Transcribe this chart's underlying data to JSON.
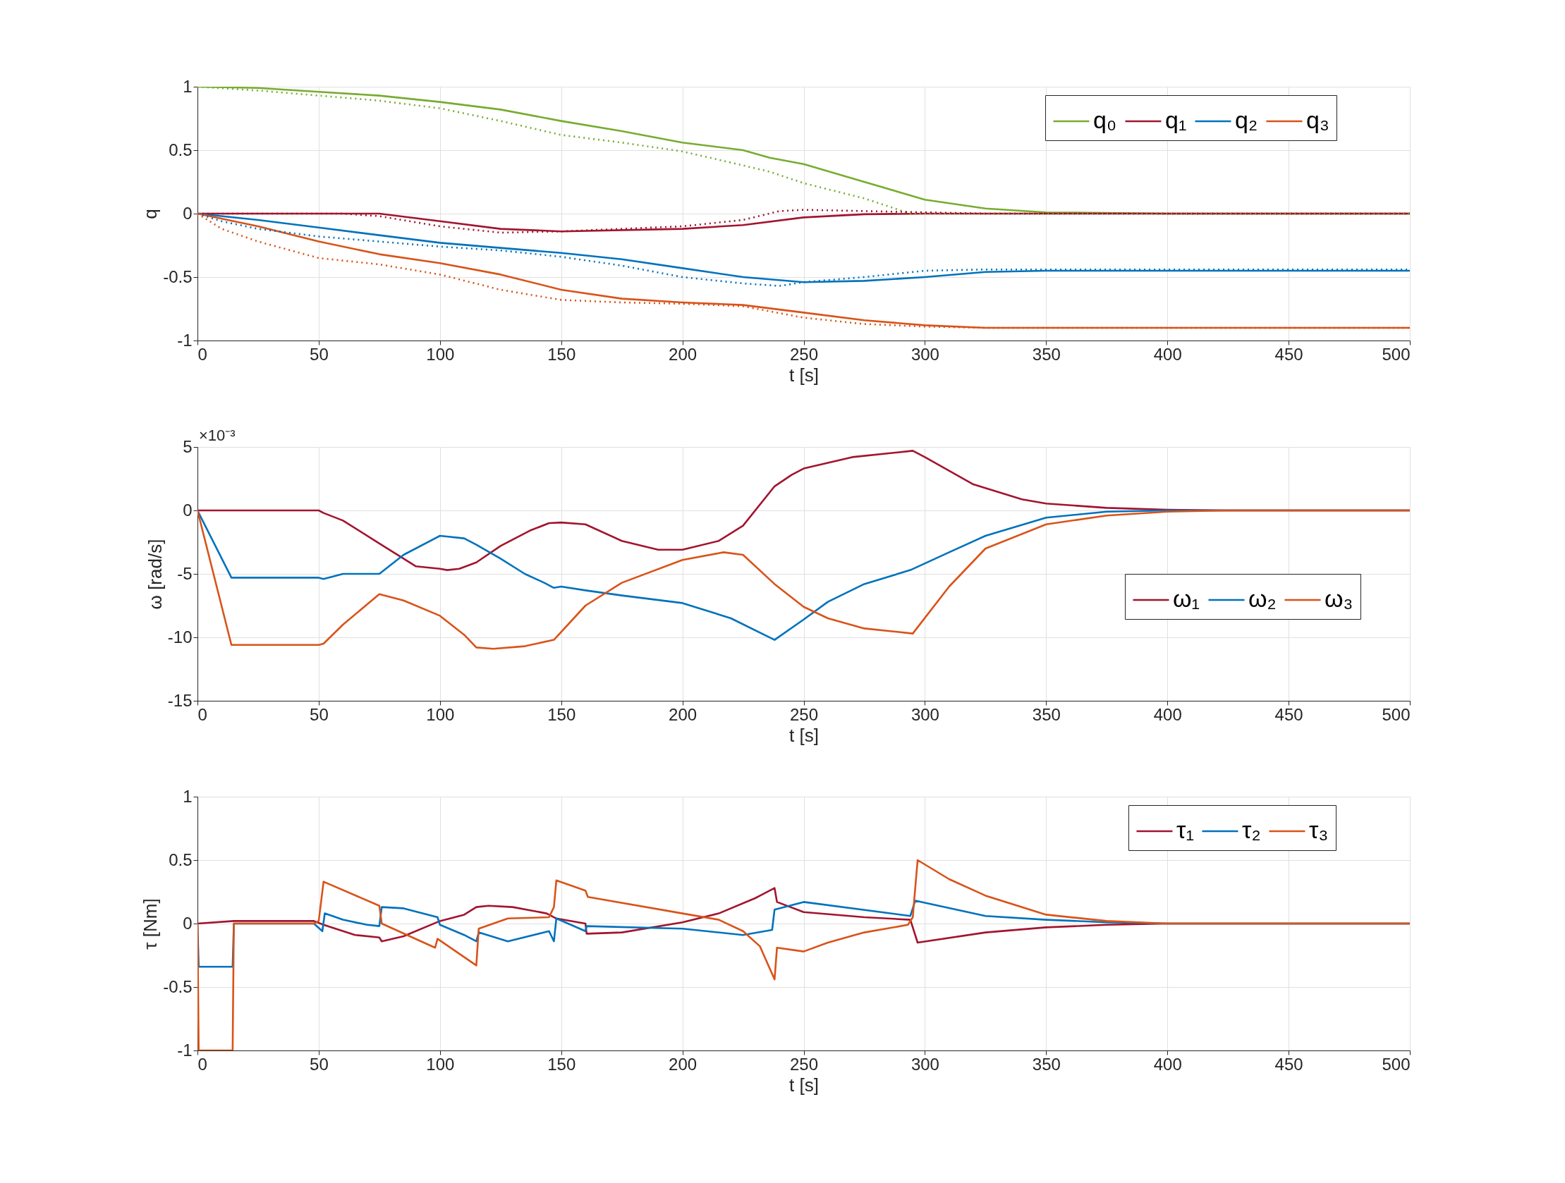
{
  "chart_data": [
    {
      "type": "line",
      "xlabel": "t [s]",
      "ylabel": "q",
      "xlim": [
        0,
        500
      ],
      "ylim": [
        -1,
        1
      ],
      "xticks": [
        0,
        50,
        100,
        150,
        200,
        250,
        300,
        350,
        400,
        450,
        500
      ],
      "yticks": [
        -1,
        -0.5,
        0,
        0.5,
        1
      ],
      "grid": true,
      "legend": "top right",
      "series": [
        {
          "name": "q₀",
          "color": "#77ac30",
          "x": [
            0,
            25,
            50,
            75,
            100,
            125,
            150,
            175,
            200,
            225,
            236,
            250,
            275,
            300,
            325,
            350,
            400,
            500
          ],
          "values": [
            1,
            0.99,
            0.96,
            0.93,
            0.88,
            0.82,
            0.73,
            0.65,
            0.56,
            0.5,
            0.44,
            0.39,
            0.25,
            0.11,
            0.04,
            0.01,
            0,
            0
          ]
        },
        {
          "name": "q₁",
          "color": "#a2142f",
          "x": [
            0,
            75,
            100,
            125,
            150,
            200,
            225,
            250,
            275,
            300,
            500
          ],
          "values": [
            0,
            0,
            -0.06,
            -0.12,
            -0.14,
            -0.12,
            -0.09,
            -0.03,
            -0.005,
            0,
            0
          ]
        },
        {
          "name": "q₂",
          "color": "#0072bd",
          "x": [
            0,
            25,
            50,
            75,
            100,
            125,
            150,
            175,
            200,
            225,
            250,
            275,
            300,
            325,
            350,
            500
          ],
          "values": [
            0,
            -0.05,
            -0.11,
            -0.17,
            -0.23,
            -0.27,
            -0.31,
            -0.36,
            -0.43,
            -0.5,
            -0.54,
            -0.53,
            -0.5,
            -0.46,
            -0.45,
            -0.45
          ]
        },
        {
          "name": "q₃",
          "color": "#d95319",
          "x": [
            0,
            25,
            50,
            75,
            100,
            125,
            150,
            175,
            200,
            225,
            250,
            275,
            300,
            325,
            500
          ],
          "values": [
            0,
            -0.1,
            -0.22,
            -0.32,
            -0.39,
            -0.48,
            -0.6,
            -0.67,
            -0.7,
            -0.72,
            -0.78,
            -0.84,
            -0.88,
            -0.9,
            -0.9
          ]
        },
        {
          "color": "#77ac30",
          "line_style": "dotted",
          "x": [
            0,
            25,
            50,
            75,
            100,
            125,
            150,
            175,
            200,
            225,
            236,
            250,
            275,
            294,
            500
          ],
          "values": [
            1,
            0.97,
            0.93,
            0.89,
            0.83,
            0.73,
            0.62,
            0.56,
            0.49,
            0.38,
            0.33,
            0.24,
            0.12,
            0,
            0
          ]
        },
        {
          "color": "#a2142f",
          "line_style": "dotted",
          "x": [
            0,
            60,
            75,
            100,
            125,
            150,
            175,
            200,
            225,
            240,
            250,
            275,
            300,
            325,
            500
          ],
          "values": [
            0,
            0,
            -0.02,
            -0.1,
            -0.15,
            -0.14,
            -0.12,
            -0.1,
            -0.05,
            0.02,
            0.03,
            0.02,
            0.01,
            0,
            0
          ]
        },
        {
          "color": "#0072bd",
          "line_style": "dotted",
          "x": [
            0,
            10,
            25,
            50,
            75,
            100,
            125,
            150,
            175,
            200,
            225,
            240,
            250,
            275,
            300,
            325,
            500
          ],
          "values": [
            0,
            -0.06,
            -0.12,
            -0.18,
            -0.22,
            -0.26,
            -0.29,
            -0.34,
            -0.41,
            -0.5,
            -0.55,
            -0.57,
            -0.54,
            -0.5,
            -0.45,
            -0.44,
            -0.44
          ]
        },
        {
          "color": "#d95319",
          "line_style": "dotted",
          "x": [
            0,
            10,
            25,
            50,
            75,
            100,
            125,
            150,
            175,
            200,
            225,
            250,
            275,
            300,
            325,
            500
          ],
          "values": [
            0,
            -0.12,
            -0.22,
            -0.35,
            -0.4,
            -0.48,
            -0.6,
            -0.68,
            -0.7,
            -0.71,
            -0.73,
            -0.82,
            -0.87,
            -0.89,
            -0.9,
            -0.9
          ]
        }
      ]
    },
    {
      "type": "line",
      "xlabel": "t [s]",
      "ylabel": "ω [rad/s]",
      "annotations": [
        "×10⁻³"
      ],
      "xlim": [
        0,
        500
      ],
      "ylim": [
        -15,
        5
      ],
      "xticks": [
        0,
        50,
        100,
        150,
        200,
        250,
        300,
        350,
        400,
        450,
        500
      ],
      "yticks": [
        -15,
        -10,
        -5,
        0,
        5
      ],
      "grid": true,
      "legend": "right",
      "series": [
        {
          "name": "ω₁",
          "color": "#a2142f",
          "x": [
            0,
            50,
            52,
            60,
            75,
            90,
            100,
            103,
            108,
            115,
            125,
            137,
            145,
            150,
            160,
            175,
            190,
            200,
            215,
            225,
            238,
            245,
            250,
            270,
            295,
            300,
            320,
            340,
            350,
            375,
            400,
            425,
            500
          ],
          "values": [
            0,
            0,
            -0.2,
            -0.8,
            -2.6,
            -4.4,
            -4.6,
            -4.7,
            -4.6,
            -4.1,
            -2.8,
            -1.6,
            -1,
            -0.95,
            -1.1,
            -2.4,
            -3.1,
            -3.1,
            -2.4,
            -1.2,
            1.9,
            2.8,
            3.3,
            4.2,
            4.7,
            4.2,
            2.05,
            0.87,
            0.54,
            0.2,
            0.05,
            0,
            0
          ]
        },
        {
          "name": "ω₂",
          "color": "#0072bd",
          "x": [
            0,
            14,
            50,
            52,
            60,
            75,
            85,
            100,
            110,
            115,
            125,
            135,
            143,
            147,
            150,
            160,
            175,
            200,
            220,
            238,
            250,
            260,
            275,
            294,
            310,
            325,
            350,
            375,
            400,
            500
          ],
          "values": [
            0,
            -5.3,
            -5.3,
            -5.4,
            -5,
            -5,
            -3.5,
            -2,
            -2.2,
            -2.7,
            -3.8,
            -5,
            -5.7,
            -6.1,
            -6,
            -6.3,
            -6.7,
            -7.3,
            -8.5,
            -10.2,
            -8.6,
            -7.2,
            -5.8,
            -4.7,
            -3.3,
            -2,
            -0.57,
            -0.1,
            0,
            0
          ]
        },
        {
          "name": "ω₃",
          "color": "#d95319",
          "x": [
            0,
            14,
            50,
            52,
            60,
            75,
            85,
            100,
            110,
            115,
            122,
            135,
            147,
            160,
            175,
            200,
            217,
            225,
            238,
            250,
            260,
            275,
            295,
            310,
            325,
            350,
            375,
            400,
            425,
            500
          ],
          "values": [
            0,
            -10.6,
            -10.6,
            -10.5,
            -9,
            -6.6,
            -7.1,
            -8.3,
            -9.8,
            -10.8,
            -10.9,
            -10.7,
            -10.2,
            -7.5,
            -5.7,
            -3.9,
            -3.3,
            -3.5,
            -5.8,
            -7.6,
            -8.5,
            -9.3,
            -9.7,
            -6,
            -3,
            -1.1,
            -0.4,
            -0.1,
            0,
            0
          ]
        }
      ]
    },
    {
      "type": "line",
      "xlabel": "t [s]",
      "ylabel": "τ [Nm]",
      "xlim": [
        0,
        500
      ],
      "ylim": [
        -1,
        1
      ],
      "xticks": [
        0,
        50,
        100,
        150,
        200,
        250,
        300,
        350,
        400,
        450,
        500
      ],
      "yticks": [
        -1,
        -0.5,
        0,
        0.5,
        1
      ],
      "grid": true,
      "legend": "top right",
      "series": [
        {
          "name": "τ₁",
          "color": "#a2142f",
          "x": [
            0,
            15,
            48,
            52,
            65,
            75,
            76,
            85,
            100,
            110,
            115,
            120,
            130,
            144,
            148,
            160,
            160.5,
            175,
            200,
            215,
            230,
            238,
            239,
            250,
            275,
            294,
            297,
            325,
            350,
            375,
            400,
            500
          ],
          "values": [
            0,
            0.02,
            0.02,
            -0.01,
            -0.09,
            -0.11,
            -0.14,
            -0.1,
            0.02,
            0.07,
            0.13,
            0.14,
            0.13,
            0.08,
            0.04,
            0,
            -0.08,
            -0.07,
            0.01,
            0.08,
            0.2,
            0.28,
            0.17,
            0.09,
            0.05,
            0.03,
            -0.15,
            -0.07,
            -0.03,
            -0.01,
            0,
            0
          ]
        },
        {
          "name": "τ₂",
          "color": "#0072bd",
          "x": [
            0,
            0.5,
            14.5,
            15,
            48,
            51.5,
            52.5,
            60,
            70,
            75,
            76,
            85,
            99,
            100,
            110,
            115,
            116,
            128,
            145,
            147,
            148,
            160,
            160.5,
            200,
            225,
            237,
            238,
            250,
            294,
            296,
            325,
            350,
            375,
            400,
            500
          ],
          "values": [
            0,
            -0.34,
            -0.34,
            0,
            0,
            -0.06,
            0.08,
            0.03,
            -0.01,
            -0.02,
            0.13,
            0.12,
            0.05,
            -0.01,
            -0.09,
            -0.14,
            -0.07,
            -0.14,
            -0.06,
            -0.14,
            0.04,
            -0.06,
            -0.02,
            -0.04,
            -0.09,
            -0.05,
            0.11,
            0.17,
            0.06,
            0.18,
            0.06,
            0.03,
            0.01,
            0,
            0
          ]
        },
        {
          "name": "τ₃",
          "color": "#d95319",
          "x": [
            0,
            0.5,
            14.5,
            15,
            48,
            50,
            52,
            75,
            76,
            98,
            99,
            115,
            116,
            128,
            145,
            147,
            148,
            160,
            161,
            200,
            215,
            225,
            232,
            238,
            239,
            250,
            260,
            275,
            293,
            295,
            297,
            310,
            325,
            350,
            375,
            400,
            500
          ],
          "values": [
            0,
            -1,
            -1,
            0,
            0,
            0.02,
            0.33,
            0.14,
            0,
            -0.19,
            -0.12,
            -0.33,
            -0.04,
            0.04,
            0.05,
            0.13,
            0.34,
            0.26,
            0.21,
            0.08,
            0.03,
            -0.06,
            -0.18,
            -0.44,
            -0.19,
            -0.22,
            -0.15,
            -0.07,
            -0.01,
            0.05,
            0.5,
            0.35,
            0.22,
            0.07,
            0.02,
            0,
            0
          ]
        }
      ]
    }
  ]
}
